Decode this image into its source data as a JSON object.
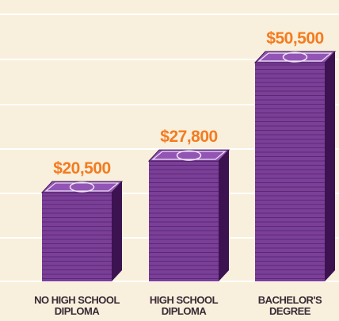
{
  "chart_data": {
    "type": "bar",
    "categories": [
      "NO HIGH SCHOOL DIPLOMA",
      "HIGH SCHOOL DIPLOMA",
      "BACHELOR'S DEGREE"
    ],
    "values": [
      20500,
      27800,
      50500
    ],
    "value_labels": [
      "$20,500",
      "$27,800",
      "$50,500"
    ],
    "color": "#7b3f98"
  }
}
